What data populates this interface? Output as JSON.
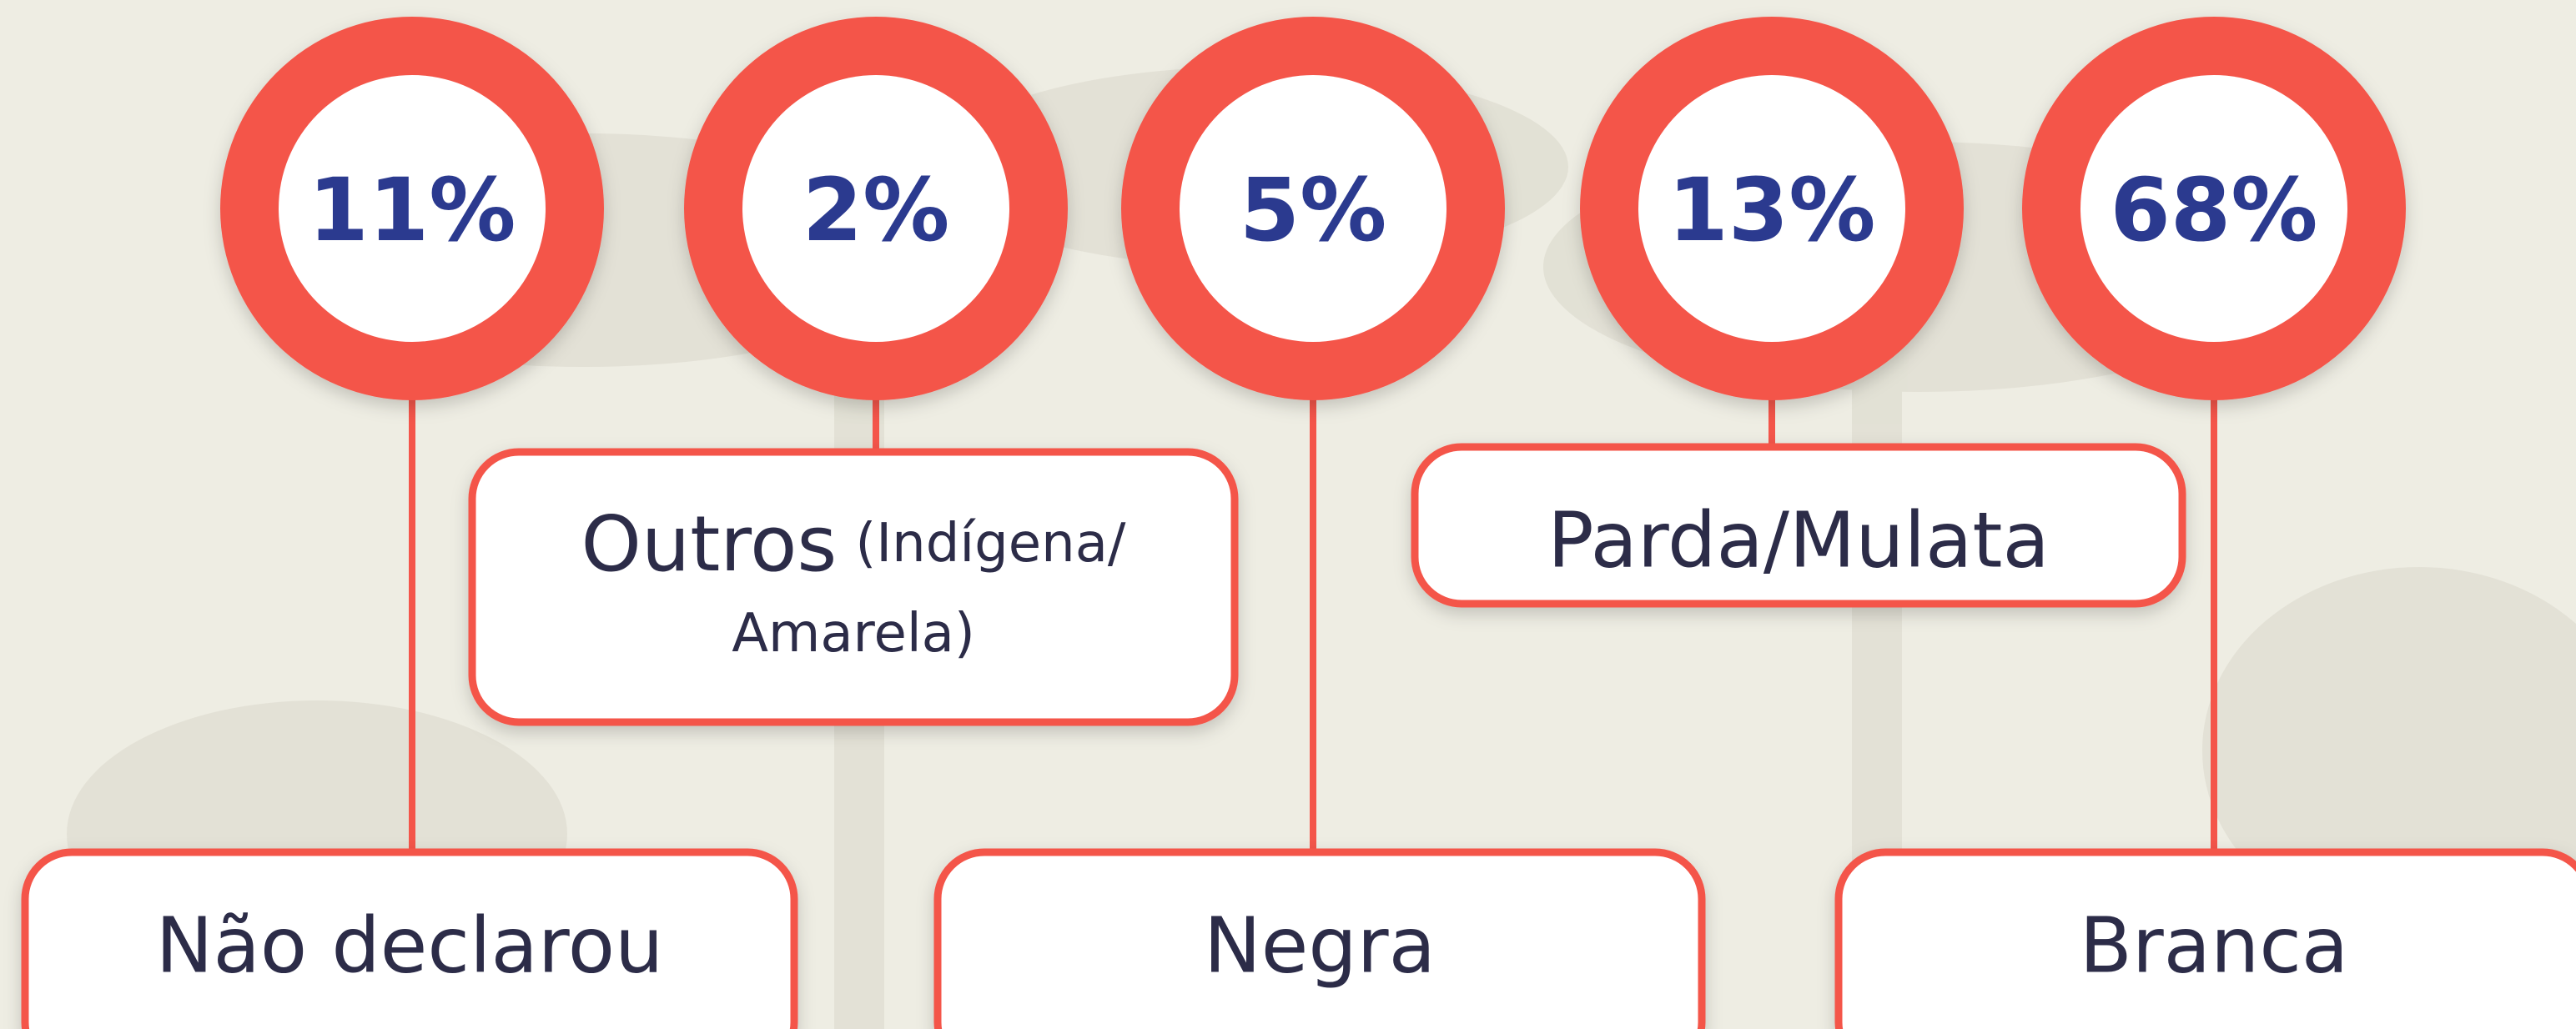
{
  "items": [
    {
      "value": "11%",
      "label": "Não declarou"
    },
    {
      "value": "2%",
      "label": "Outros",
      "sublabel_line1": "(Indígena/",
      "sublabel_line2": "Amarela)"
    },
    {
      "value": "5%",
      "label": "Negra"
    },
    {
      "value": "13%",
      "label": "Parda/Mulata"
    },
    {
      "value": "68%",
      "label": "Branca"
    }
  ]
}
